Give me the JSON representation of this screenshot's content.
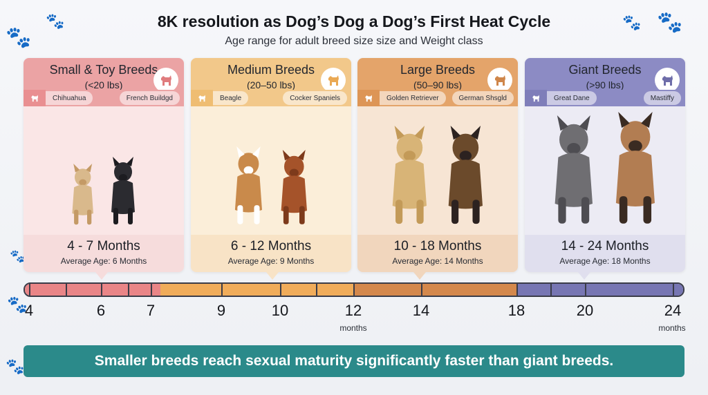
{
  "header": {
    "title": "8K resolution as Dog’s Dog a Dog’s First Heat Cycle",
    "subtitle": "Age range for adult breed size size and Weight class"
  },
  "cards": [
    {
      "title": "Small & Toy Breeds",
      "weight": "(<20 lbs)",
      "breed_left": "Chihuahua",
      "breed_right": "French Buildgd",
      "range": "4 - 7 Months",
      "average": "Average Age: 6 Months",
      "colors": {
        "head": "#eba3a4",
        "tag": "#e98f91",
        "body": "#fae6e6",
        "foot": "#f6dcdc",
        "accent": "#e07c7e"
      }
    },
    {
      "title": "Medium Breeds",
      "weight": "(20–50 lbs)",
      "breed_left": "Beagle",
      "breed_right": "Cocker Spaniels",
      "range": "6 - 12 Months",
      "average": "Average Age: 9 Months",
      "colors": {
        "head": "#f2c88a",
        "tag": "#efbd72",
        "body": "#fbeed9",
        "foot": "#f8e3c6",
        "accent": "#eaa954"
      }
    },
    {
      "title": "Large Breeds",
      "weight": "(50–90 lbs)",
      "breed_left": "Golden Retriever",
      "breed_right": "German Shsgld",
      "range": "10 - 18 Months",
      "average": "Average Age: 14 Months",
      "colors": {
        "head": "#e4a46a",
        "tag": "#dd9556",
        "body": "#f7e5d4",
        "foot": "#f1d6bd",
        "accent": "#cf864a"
      }
    },
    {
      "title": "Giant Breeds",
      "weight": "(>90 lbs)",
      "breed_left": "Great Dane",
      "breed_right": "Mastiffy",
      "range": "14 - 24 Months",
      "average": "Average Age: 18 Months",
      "colors": {
        "head": "#8c8bc4",
        "tag": "#7f7eb9",
        "body": "#ecebf4",
        "foot": "#e0dfee",
        "accent": "#6e6da9"
      }
    }
  ],
  "timeline": {
    "ticks": [
      "4",
      "6",
      "7",
      "9",
      "10",
      "12",
      "14",
      "18",
      "20",
      "24"
    ],
    "unit": "months",
    "segment_colors": [
      "#e98587",
      "#f0ac5a",
      "#d4884c",
      "#7776b3"
    ]
  },
  "footer": {
    "message": "Smaller breeds reach sexual maturity significantly faster than giant breeds.",
    "color": "#2b8a8a"
  },
  "icons": [
    "paw-icon",
    "dog-silhouette-icon"
  ]
}
